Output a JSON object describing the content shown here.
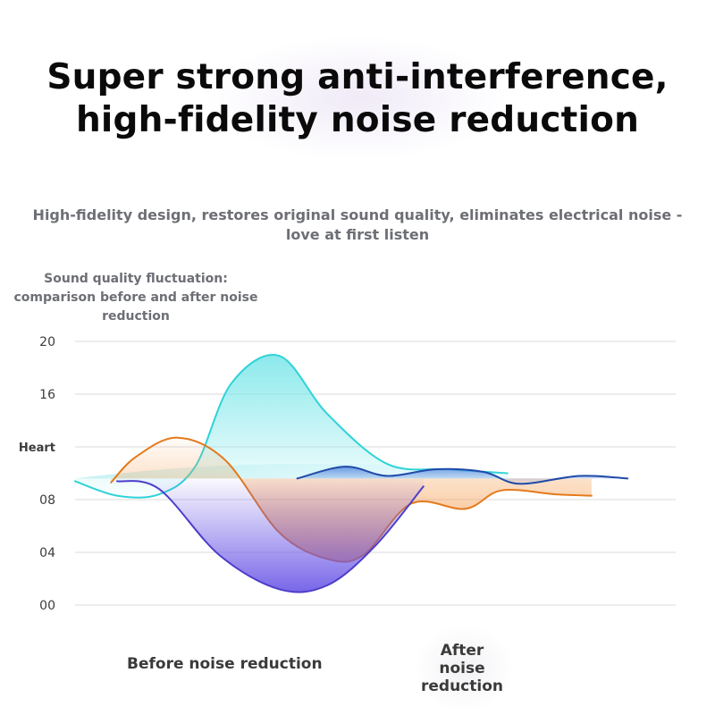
{
  "header": {
    "title_line1": "Super strong anti-interference,",
    "title_line2": "high-fidelity noise reduction",
    "subtitle_line1": "High-fidelity design, restores original sound quality, eliminates electrical noise -",
    "subtitle_line2": "love at first listen"
  },
  "panel": {
    "label_line1": "Sound quality fluctuation:",
    "label_line2": "comparison before and after noise",
    "label_line3": "reduction"
  },
  "legend": {
    "before": "Before noise reduction",
    "after_line1": "After",
    "after_line2": "noise",
    "after_line3": "reduction"
  },
  "chart_data": {
    "type": "area",
    "title": "",
    "xlabel": "",
    "ylabel": "",
    "ylim": [
      0,
      20
    ],
    "y_ticks": [
      {
        "value": 20,
        "label": "20"
      },
      {
        "value": 16,
        "label": "16"
      },
      {
        "value": 12,
        "label": "Heart"
      },
      {
        "value": 8,
        "label": "08"
      },
      {
        "value": 4,
        "label": "04"
      },
      {
        "value": 0,
        "label": "00"
      }
    ],
    "grid": true,
    "legend_position": "bottom",
    "series": [
      {
        "color": "#2fd3d8",
        "fill": "#7fe7ea",
        "points": [
          [
            0.0,
            9.4
          ],
          [
            0.07,
            8.3
          ],
          [
            0.14,
            8.4
          ],
          [
            0.2,
            10.5
          ],
          [
            0.26,
            16.8
          ],
          [
            0.34,
            18.9
          ],
          [
            0.42,
            14.5
          ],
          [
            0.52,
            10.7
          ],
          [
            0.62,
            10.3
          ],
          [
            0.72,
            10.0
          ]
        ]
      },
      {
        "color": "#e47a1c",
        "fill": "#f6a35a",
        "points": [
          [
            0.06,
            9.3
          ],
          [
            0.1,
            11.2
          ],
          [
            0.17,
            12.7
          ],
          [
            0.25,
            11.0
          ],
          [
            0.34,
            5.5
          ],
          [
            0.42,
            3.5
          ],
          [
            0.48,
            3.8
          ],
          [
            0.56,
            7.7
          ],
          [
            0.65,
            7.3
          ],
          [
            0.71,
            8.7
          ],
          [
            0.8,
            8.4
          ],
          [
            0.86,
            8.3
          ]
        ]
      },
      {
        "color": "#4d3ec9",
        "fill": "#6a55e6",
        "points": [
          [
            0.07,
            9.4
          ],
          [
            0.14,
            8.8
          ],
          [
            0.24,
            3.8
          ],
          [
            0.34,
            1.2
          ],
          [
            0.42,
            1.5
          ],
          [
            0.5,
            4.5
          ],
          [
            0.58,
            9.0
          ]
        ]
      },
      {
        "color": "#1f4aa8",
        "fill": "#5f8fe0",
        "points": [
          [
            0.37,
            9.6
          ],
          [
            0.45,
            10.5
          ],
          [
            0.52,
            9.8
          ],
          [
            0.6,
            10.3
          ],
          [
            0.68,
            10.1
          ],
          [
            0.74,
            9.2
          ],
          [
            0.84,
            9.8
          ],
          [
            0.92,
            9.6
          ]
        ]
      }
    ]
  }
}
